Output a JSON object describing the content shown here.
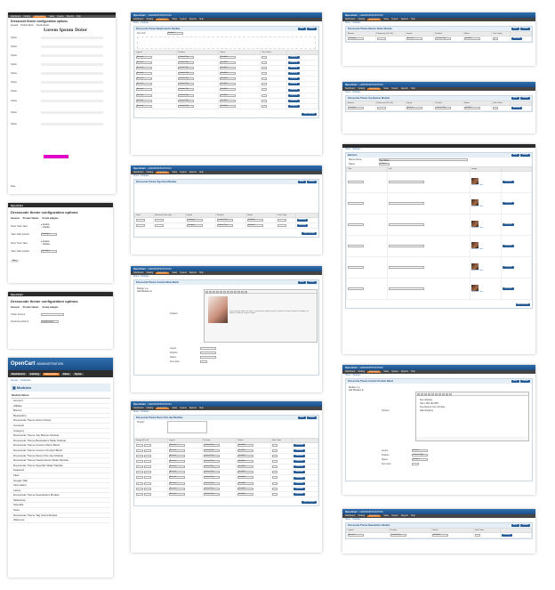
{
  "brand": {
    "name": "OpenCart",
    "sub": "ADMINISTRATION"
  },
  "nav": [
    "Dashboard",
    "Catalog",
    "Extensions",
    "Sales",
    "System",
    "Reports",
    "Help"
  ],
  "crumb": "Home :: Modules",
  "panel1": {
    "title": "Dresscode theme configuration options",
    "tabs": [
      "General",
      "Product labels",
      "Social widgets"
    ],
    "logo_text": "Lorem Ipsum Dolor",
    "fields": [
      "Option",
      "Option",
      "Option",
      "Option",
      "Option",
      "Option",
      "Option",
      "Option",
      "Option",
      "Option"
    ],
    "footer": "Save"
  },
  "panel2": {
    "title": "Dresscode theme configuration options",
    "tabs": [
      "General",
      "Product labels",
      "Social widgets"
    ],
    "rows": [
      "Show \"Sale\" label",
      "\"Sale\" label position",
      "Show \"New\" label",
      "\"New\" label position"
    ],
    "opt_enable": "Enable",
    "opt_disable": "Disable",
    "pos": "Top Right",
    "save": "Save"
  },
  "panel3": {
    "title": "Dresscode theme configuration options",
    "tabs": [
      "General",
      "Product labels",
      "Social widgets"
    ],
    "rows": [
      "Twitter account",
      "Facebook profile id"
    ],
    "values": [
      "",
      "000000000000"
    ]
  },
  "panel4": {
    "tabs": [
      "Dashboard",
      "Catalog",
      "Extensions",
      "Sales",
      "Syste"
    ],
    "crumb": "Home :: Modules",
    "heading": "Modules",
    "col": "Module Name",
    "modules": [
      "Account",
      "Affiliate",
      "Banner",
      "Bestsellers",
      "Dresscode Theme Admin Panel",
      "Carousel",
      "Category",
      "Dresscode Theme Top Banner Module",
      "Dresscode Theme Bestsellers Slider Module",
      "Dresscode Theme Custom Menu Block",
      "Dresscode Theme Custom Product Block",
      "Dresscode Theme Deal of the day Module",
      "Dresscode Theme Newproducts Slider Module",
      "Dresscode Theme Specials Slider Module",
      "Featured",
      "Filter",
      "Google Talk",
      "Information",
      "Latest",
      "Dresscode Theme Newsletters Module",
      "Slideshow",
      "Specials",
      "Store",
      "Dresscode Theme Tag Cloud Module",
      "Welcome"
    ]
  },
  "c1": {
    "title": "Dresscode Theme Newproducts Module",
    "save": "Save",
    "cancel": "Cancel",
    "limit_label": "Item limit",
    "limit_val": "Enabled",
    "cols": [
      "Layout",
      "Position",
      "Status",
      "Sort Order",
      ""
    ],
    "layout": "Account",
    "position": "Content Top",
    "status": "Enabled",
    "remove": "Remove",
    "add": "Add Module",
    "rows": 10
  },
  "c2": {
    "title": "Dresscode Theme Tag Cloud Module",
    "cols": [
      "Limit",
      "Maximum Size (px)",
      "Layout",
      "Position",
      "Status",
      "Sort Order",
      ""
    ],
    "layout": "Category",
    "add": "Add Module"
  },
  "c3": {
    "title": "Dresscode Theme Custom Menu Block",
    "tab": "Module 1",
    "field": "Content",
    "add_modules": "Add Modules",
    "labels": [
      "Layout",
      "Position",
      "Status",
      "Sort order"
    ],
    "caption": "Lorem ipsum dolor sit amet, consectetur adipiscing elit, sed do eiusmod tempor incididunt ut labore et dolore magna aliqua."
  },
  "c4": {
    "title": "Dresscode Theme Deal of the day Modules",
    "product": "Product",
    "cols": [
      "Image (W x H)",
      "Layout",
      "Position",
      "Status",
      "Sort Order",
      ""
    ],
    "add": "Add Module"
  },
  "r1": {
    "title": "Dresscode Theme Banner Slider Module",
    "cols": [
      "Banner",
      "Dimension (W x H)",
      "Layout",
      "Position",
      "Status",
      "Sort Order",
      ""
    ],
    "vals": [
      "Category",
      "",
      "Content Top",
      "Enabled",
      "1"
    ]
  },
  "r2": {
    "title": "Dresscode Theme Top Banner Module",
    "cols": [
      "Banner",
      "Dimension (W x H)",
      "Layout",
      "Position",
      "Status",
      "Sort Order",
      ""
    ]
  },
  "r3": {
    "title": "Banners",
    "name_label": "Banner Name",
    "name_val": "Top Slider",
    "status_label": "Status",
    "status_val": "Enabled",
    "cols": [
      "Title",
      "Link",
      "Image",
      ""
    ],
    "browse": "Browse",
    "clear": "Clear",
    "add": "Add Banner",
    "rows": 6
  },
  "r4": {
    "title": "Dresscode Theme Custom Product Block",
    "tab": "Module 1",
    "add_modules": "Add Modules",
    "field": "Content",
    "lines": [
      "Free shipping",
      "Call: 1 800 123 4567",
      "Free Returns Up to 30 days",
      "Safe shopping"
    ],
    "labels": [
      "Layout",
      "Position",
      "Status",
      "Sort order"
    ],
    "vals": [
      "Product",
      "Column Right",
      "Enabled",
      ""
    ]
  },
  "r5": {
    "title": "Dresscode Theme Newsletters Module",
    "cols": [
      "Layout",
      "Position",
      "Status",
      "Sort Order",
      ""
    ],
    "add": "Add Module"
  }
}
